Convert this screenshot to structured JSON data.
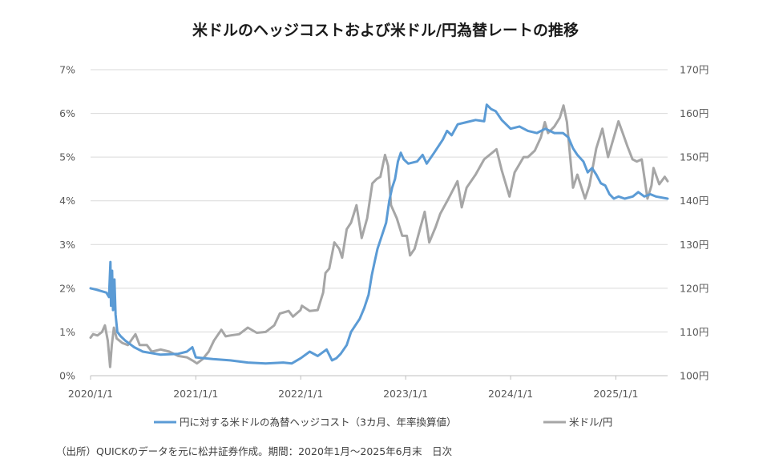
{
  "chart_data": {
    "type": "line",
    "title": "米ドルのヘッジコストおよび米ドル/円為替レートの推移",
    "x_range": [
      "2020/1/1",
      "2025/6/30"
    ],
    "x_ticks": [
      "2020/1/1",
      "2021/1/1",
      "2022/1/1",
      "2023/1/1",
      "2024/1/1",
      "2025/1/1"
    ],
    "y_left": {
      "ticks": [
        "0%",
        "1%",
        "2%",
        "3%",
        "4%",
        "5%",
        "6%",
        "7%"
      ],
      "range": [
        0,
        7
      ],
      "unit": "%"
    },
    "y_right": {
      "ticks": [
        "100円",
        "110円",
        "120円",
        "130円",
        "140円",
        "150円",
        "160円",
        "170円"
      ],
      "range": [
        100,
        170
      ],
      "unit": "円"
    },
    "grid": true,
    "legend_position": "bottom",
    "series": [
      {
        "name": "円に対する米ドルの為替ヘッジコスト（3カ月、年率換算値）",
        "axis": "left",
        "color": "#5b9bd5",
        "points": [
          [
            "2020-01-01",
            2.0
          ],
          [
            "2020-01-20",
            1.97
          ],
          [
            "2020-02-10",
            1.93
          ],
          [
            "2020-02-25",
            1.9
          ],
          [
            "2020-03-05",
            1.8
          ],
          [
            "2020-03-10",
            2.6
          ],
          [
            "2020-03-12",
            1.6
          ],
          [
            "2020-03-16",
            2.4
          ],
          [
            "2020-03-19",
            1.5
          ],
          [
            "2020-03-24",
            2.2
          ],
          [
            "2020-03-28",
            1.4
          ],
          [
            "2020-04-03",
            1.0
          ],
          [
            "2020-04-15",
            0.9
          ],
          [
            "2020-05-01",
            0.8
          ],
          [
            "2020-06-01",
            0.65
          ],
          [
            "2020-07-01",
            0.55
          ],
          [
            "2020-09-01",
            0.48
          ],
          [
            "2020-11-01",
            0.5
          ],
          [
            "2020-12-01",
            0.55
          ],
          [
            "2020-12-20",
            0.65
          ],
          [
            "2021-01-01",
            0.42
          ],
          [
            "2021-03-01",
            0.38
          ],
          [
            "2021-05-01",
            0.35
          ],
          [
            "2021-07-01",
            0.3
          ],
          [
            "2021-09-01",
            0.28
          ],
          [
            "2021-11-01",
            0.3
          ],
          [
            "2021-12-01",
            0.28
          ],
          [
            "2022-01-01",
            0.4
          ],
          [
            "2022-02-01",
            0.55
          ],
          [
            "2022-03-01",
            0.45
          ],
          [
            "2022-04-01",
            0.6
          ],
          [
            "2022-04-20",
            0.35
          ],
          [
            "2022-05-05",
            0.4
          ],
          [
            "2022-05-20",
            0.5
          ],
          [
            "2022-06-10",
            0.7
          ],
          [
            "2022-06-25",
            1.0
          ],
          [
            "2022-07-10",
            1.15
          ],
          [
            "2022-07-25",
            1.3
          ],
          [
            "2022-08-10",
            1.55
          ],
          [
            "2022-08-25",
            1.85
          ],
          [
            "2022-09-05",
            2.3
          ],
          [
            "2022-09-15",
            2.6
          ],
          [
            "2022-09-25",
            2.9
          ],
          [
            "2022-10-05",
            3.1
          ],
          [
            "2022-10-15",
            3.3
          ],
          [
            "2022-10-25",
            3.5
          ],
          [
            "2022-11-05",
            4.0
          ],
          [
            "2022-11-15",
            4.3
          ],
          [
            "2022-11-25",
            4.5
          ],
          [
            "2022-12-05",
            4.9
          ],
          [
            "2022-12-15",
            5.1
          ],
          [
            "2022-12-25",
            4.95
          ],
          [
            "2023-01-10",
            4.85
          ],
          [
            "2023-02-10",
            4.9
          ],
          [
            "2023-03-01",
            5.05
          ],
          [
            "2023-03-15",
            4.85
          ],
          [
            "2023-04-10",
            5.1
          ],
          [
            "2023-05-10",
            5.4
          ],
          [
            "2023-05-25",
            5.6
          ],
          [
            "2023-06-10",
            5.5
          ],
          [
            "2023-07-01",
            5.75
          ],
          [
            "2023-08-01",
            5.8
          ],
          [
            "2023-09-01",
            5.85
          ],
          [
            "2023-10-01",
            5.82
          ],
          [
            "2023-10-10",
            6.2
          ],
          [
            "2023-10-25",
            6.1
          ],
          [
            "2023-11-10",
            6.05
          ],
          [
            "2023-12-01",
            5.85
          ],
          [
            "2024-01-01",
            5.65
          ],
          [
            "2024-02-01",
            5.7
          ],
          [
            "2024-03-01",
            5.6
          ],
          [
            "2024-04-01",
            5.55
          ],
          [
            "2024-05-01",
            5.65
          ],
          [
            "2024-06-01",
            5.55
          ],
          [
            "2024-07-01",
            5.55
          ],
          [
            "2024-07-20",
            5.45
          ],
          [
            "2024-08-05",
            5.2
          ],
          [
            "2024-08-20",
            5.05
          ],
          [
            "2024-09-10",
            4.9
          ],
          [
            "2024-09-25",
            4.65
          ],
          [
            "2024-10-10",
            4.75
          ],
          [
            "2024-10-25",
            4.6
          ],
          [
            "2024-11-10",
            4.4
          ],
          [
            "2024-11-25",
            4.35
          ],
          [
            "2024-12-10",
            4.15
          ],
          [
            "2024-12-25",
            4.05
          ],
          [
            "2025-01-10",
            4.1
          ],
          [
            "2025-02-01",
            4.05
          ],
          [
            "2025-03-01",
            4.1
          ],
          [
            "2025-03-20",
            4.2
          ],
          [
            "2025-04-10",
            4.1
          ],
          [
            "2025-05-01",
            4.15
          ],
          [
            "2025-05-20",
            4.1
          ],
          [
            "2025-06-30",
            4.05
          ]
        ]
      },
      {
        "name": "米ドル/円",
        "axis": "right",
        "color": "#a6a6a6",
        "points": [
          [
            "2020-01-01",
            108.7
          ],
          [
            "2020-01-10",
            109.5
          ],
          [
            "2020-01-25",
            109.2
          ],
          [
            "2020-02-10",
            110.0
          ],
          [
            "2020-02-20",
            111.5
          ],
          [
            "2020-03-01",
            108.0
          ],
          [
            "2020-03-09",
            102.0
          ],
          [
            "2020-03-15",
            107.0
          ],
          [
            "2020-03-22",
            111.0
          ],
          [
            "2020-04-01",
            108.5
          ],
          [
            "2020-04-20",
            107.5
          ],
          [
            "2020-05-10",
            107.0
          ],
          [
            "2020-06-05",
            109.5
          ],
          [
            "2020-06-20",
            107.0
          ],
          [
            "2020-07-15",
            107.0
          ],
          [
            "2020-08-01",
            105.5
          ],
          [
            "2020-09-01",
            106.0
          ],
          [
            "2020-10-01",
            105.5
          ],
          [
            "2020-11-01",
            104.5
          ],
          [
            "2020-12-01",
            104.2
          ],
          [
            "2020-12-25",
            103.3
          ],
          [
            "2021-01-05",
            102.8
          ],
          [
            "2021-01-25",
            103.8
          ],
          [
            "2021-02-15",
            105.5
          ],
          [
            "2021-03-05",
            108.0
          ],
          [
            "2021-03-31",
            110.5
          ],
          [
            "2021-04-15",
            109.0
          ],
          [
            "2021-05-01",
            109.2
          ],
          [
            "2021-06-01",
            109.5
          ],
          [
            "2021-07-01",
            111.0
          ],
          [
            "2021-08-01",
            109.8
          ],
          [
            "2021-09-01",
            110.0
          ],
          [
            "2021-10-01",
            111.5
          ],
          [
            "2021-10-20",
            114.2
          ],
          [
            "2021-11-20",
            114.8
          ],
          [
            "2021-12-05",
            113.5
          ],
          [
            "2021-12-31",
            115.0
          ],
          [
            "2022-01-05",
            116.0
          ],
          [
            "2022-02-01",
            114.8
          ],
          [
            "2022-03-01",
            115.0
          ],
          [
            "2022-03-20",
            119.0
          ],
          [
            "2022-03-28",
            123.5
          ],
          [
            "2022-04-10",
            124.5
          ],
          [
            "2022-04-28",
            130.5
          ],
          [
            "2022-05-15",
            129.0
          ],
          [
            "2022-05-25",
            127.0
          ],
          [
            "2022-06-10",
            133.5
          ],
          [
            "2022-06-25",
            135.0
          ],
          [
            "2022-07-14",
            139.0
          ],
          [
            "2022-08-01",
            131.5
          ],
          [
            "2022-08-20",
            136.0
          ],
          [
            "2022-09-07",
            144.0
          ],
          [
            "2022-09-22",
            145.0
          ],
          [
            "2022-10-05",
            145.5
          ],
          [
            "2022-10-21",
            150.5
          ],
          [
            "2022-11-01",
            148.0
          ],
          [
            "2022-11-11",
            139.0
          ],
          [
            "2022-12-01",
            136.0
          ],
          [
            "2022-12-20",
            132.0
          ],
          [
            "2023-01-05",
            132.0
          ],
          [
            "2023-01-16",
            127.5
          ],
          [
            "2023-02-01",
            129.0
          ],
          [
            "2023-03-08",
            137.5
          ],
          [
            "2023-03-24",
            130.5
          ],
          [
            "2023-04-15",
            134.0
          ],
          [
            "2023-05-01",
            137.0
          ],
          [
            "2023-05-30",
            140.5
          ],
          [
            "2023-06-30",
            144.5
          ],
          [
            "2023-07-15",
            138.5
          ],
          [
            "2023-08-01",
            143.0
          ],
          [
            "2023-09-01",
            146.0
          ],
          [
            "2023-10-01",
            149.5
          ],
          [
            "2023-11-13",
            151.8
          ],
          [
            "2023-12-01",
            147.0
          ],
          [
            "2023-12-28",
            141.0
          ],
          [
            "2024-01-15",
            146.5
          ],
          [
            "2024-02-15",
            150.0
          ],
          [
            "2024-03-01",
            150.0
          ],
          [
            "2024-03-25",
            151.5
          ],
          [
            "2024-04-15",
            154.5
          ],
          [
            "2024-04-29",
            158.0
          ],
          [
            "2024-05-10",
            155.5
          ],
          [
            "2024-06-01",
            157.0
          ],
          [
            "2024-06-20",
            159.0
          ],
          [
            "2024-07-03",
            161.8
          ],
          [
            "2024-07-15",
            158.0
          ],
          [
            "2024-08-05",
            143.0
          ],
          [
            "2024-08-20",
            146.0
          ],
          [
            "2024-09-16",
            140.5
          ],
          [
            "2024-10-01",
            143.5
          ],
          [
            "2024-10-25",
            152.0
          ],
          [
            "2024-11-15",
            156.5
          ],
          [
            "2024-12-05",
            150.0
          ],
          [
            "2025-01-10",
            158.2
          ],
          [
            "2025-01-25",
            155.5
          ],
          [
            "2025-02-10",
            152.5
          ],
          [
            "2025-02-28",
            149.5
          ],
          [
            "2025-03-15",
            149.0
          ],
          [
            "2025-04-01",
            149.5
          ],
          [
            "2025-04-21",
            140.5
          ],
          [
            "2025-05-05",
            143.5
          ],
          [
            "2025-05-12",
            147.5
          ],
          [
            "2025-06-01",
            143.8
          ],
          [
            "2025-06-20",
            145.5
          ],
          [
            "2025-06-30",
            144.5
          ]
        ]
      }
    ]
  },
  "source_note": "（出所）QUICKのデータを元に松井証券作成。期間：2020年1月～2025年6月末　日次"
}
